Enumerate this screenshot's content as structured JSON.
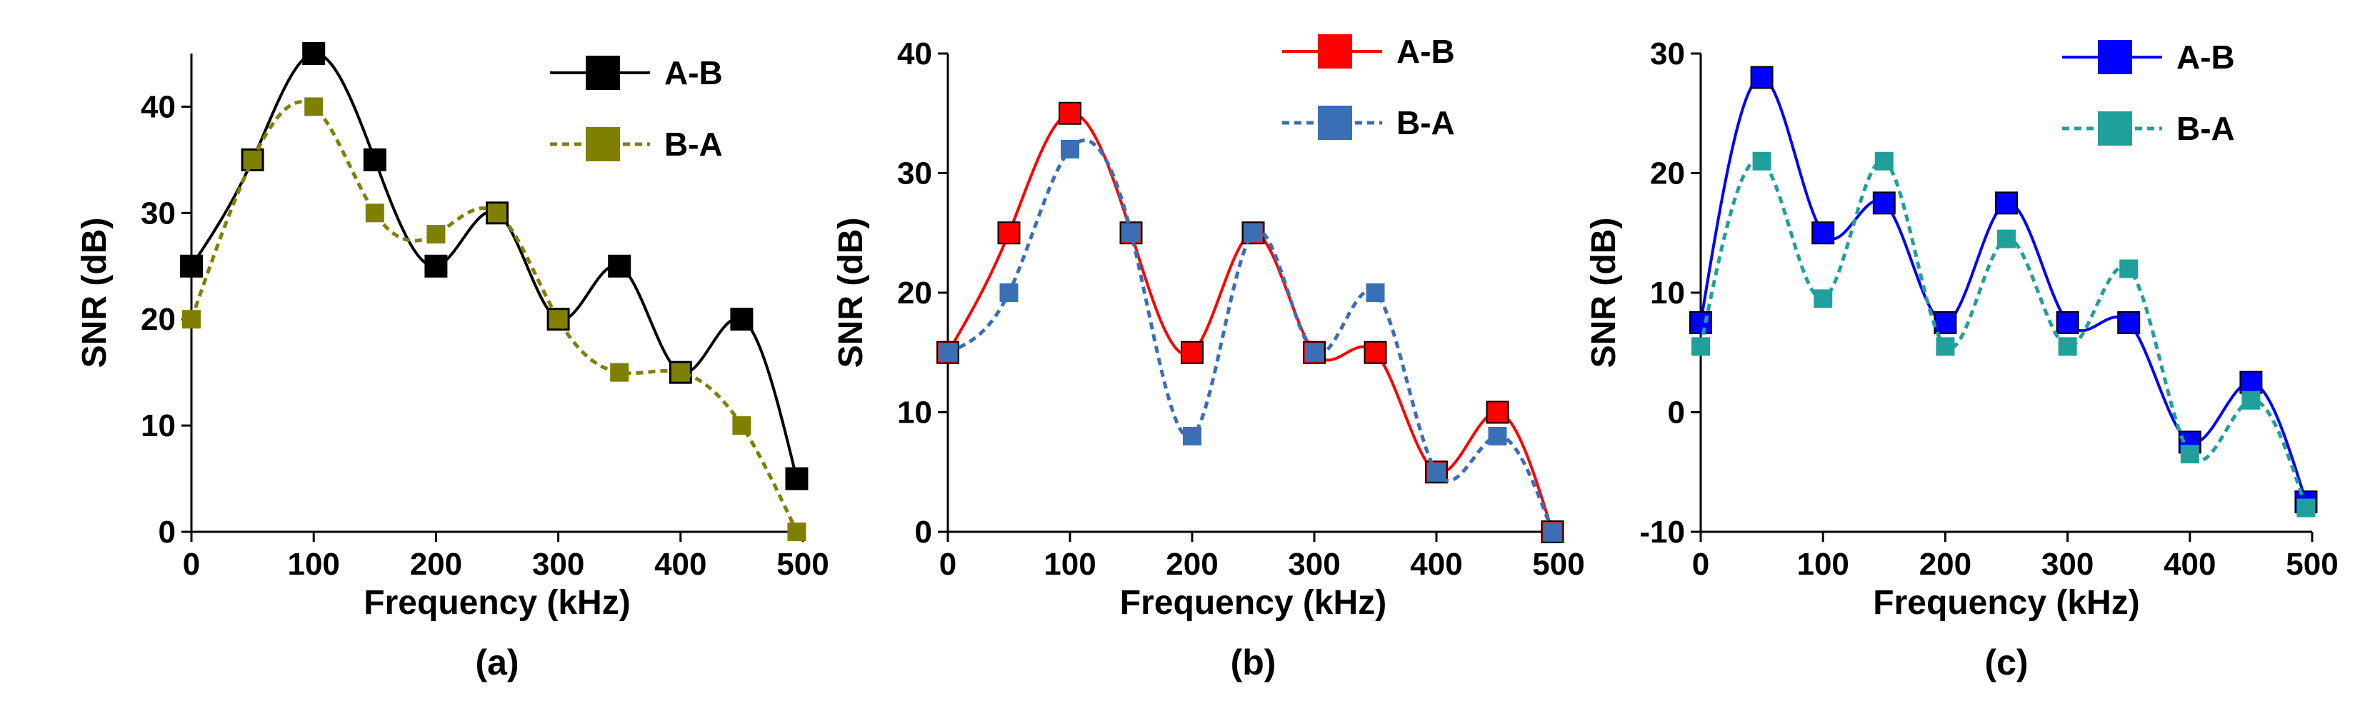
{
  "chart_data": [
    {
      "type": "line",
      "panel_label": "(a)",
      "title": "",
      "xlabel": "Frequency (kHz)",
      "ylabel": "SNR (dB)",
      "xlim": [
        0,
        500
      ],
      "ylim": [
        0,
        45
      ],
      "xticks": [
        0,
        100,
        200,
        300,
        400,
        500
      ],
      "yticks": [
        0,
        10,
        20,
        30,
        40
      ],
      "tick_labels_x": [
        "0",
        "100",
        "200",
        "300",
        "400",
        "500"
      ],
      "tick_labels_y": [
        "0",
        "10",
        "20",
        "30",
        "40"
      ],
      "grid": false,
      "legend_position": "top-right",
      "series": [
        {
          "name": "A-B",
          "color": "#000000",
          "line_style": "solid",
          "marker": "square",
          "x": [
            0,
            50,
            100,
            150,
            200,
            250,
            300,
            350,
            400,
            450,
            495
          ],
          "y": [
            25,
            35,
            45,
            35,
            25,
            30,
            20,
            25,
            15,
            20,
            5
          ]
        },
        {
          "name": "B-A",
          "color": "#808000",
          "line_style": "dashed",
          "marker": "square",
          "x": [
            0,
            50,
            100,
            150,
            200,
            250,
            300,
            350,
            400,
            450,
            495
          ],
          "y": [
            20,
            35,
            40,
            30,
            28,
            30,
            20,
            15,
            15,
            10,
            0
          ]
        }
      ]
    },
    {
      "type": "line",
      "panel_label": "(b)",
      "title": "",
      "xlabel": "Frequency (kHz)",
      "ylabel": "SNR (dB)",
      "xlim": [
        0,
        500
      ],
      "ylim": [
        0,
        40
      ],
      "xticks": [
        0,
        100,
        200,
        300,
        400,
        500
      ],
      "yticks": [
        0,
        10,
        20,
        30,
        40
      ],
      "tick_labels_x": [
        "0",
        "100",
        "200",
        "300",
        "400",
        "500"
      ],
      "tick_labels_y": [
        "0",
        "10",
        "20",
        "30",
        "40"
      ],
      "grid": false,
      "legend_position": "top-right",
      "series": [
        {
          "name": "A-B",
          "color": "#ff0000",
          "line_style": "solid",
          "marker": "square",
          "x": [
            0,
            50,
            100,
            150,
            200,
            250,
            300,
            350,
            400,
            450,
            495
          ],
          "y": [
            15,
            25,
            35,
            25,
            15,
            25,
            15,
            15,
            5,
            10,
            0
          ]
        },
        {
          "name": "B-A",
          "color": "#3a6fb5",
          "line_style": "dashed",
          "marker": "square",
          "x": [
            0,
            50,
            100,
            150,
            200,
            250,
            300,
            350,
            400,
            450,
            495
          ],
          "y": [
            15,
            20,
            32,
            25,
            8,
            25,
            15,
            20,
            5,
            8,
            0
          ]
        }
      ]
    },
    {
      "type": "line",
      "panel_label": "(c)",
      "title": "",
      "xlabel": "Frequency (kHz)",
      "ylabel": "SNR (dB)",
      "xlim": [
        0,
        500
      ],
      "ylim": [
        -10,
        30
      ],
      "xticks": [
        0,
        100,
        200,
        300,
        400,
        500
      ],
      "yticks": [
        -10,
        0,
        10,
        20,
        30
      ],
      "tick_labels_x": [
        "0",
        "100",
        "200",
        "300",
        "400",
        "500"
      ],
      "tick_labels_y": [
        "-10",
        "0",
        "10",
        "20",
        "30"
      ],
      "grid": false,
      "legend_position": "top-right",
      "series": [
        {
          "name": "A-B",
          "color": "#0000ff",
          "line_style": "solid",
          "marker": "square",
          "x": [
            0,
            50,
            100,
            150,
            200,
            250,
            300,
            350,
            400,
            450,
            495
          ],
          "y": [
            7.5,
            28,
            15,
            17.5,
            7.5,
            17.5,
            7.5,
            7.5,
            -2.5,
            2.5,
            -7.5
          ]
        },
        {
          "name": "B-A",
          "color": "#20a09a",
          "line_style": "dashed",
          "marker": "square",
          "x": [
            0,
            50,
            100,
            150,
            200,
            250,
            300,
            350,
            400,
            450,
            495
          ],
          "y": [
            5.5,
            21,
            9.5,
            21,
            5.5,
            14.5,
            5.5,
            12,
            -3.5,
            1,
            -8
          ]
        }
      ]
    }
  ]
}
